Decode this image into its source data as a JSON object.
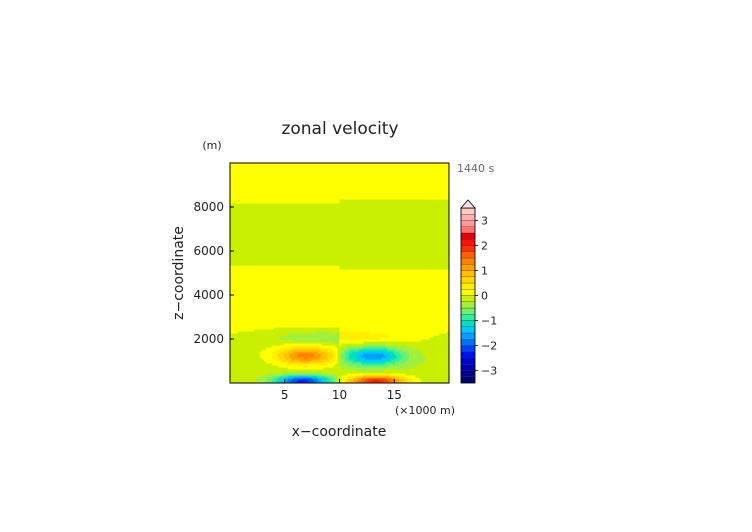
{
  "chart_data": {
    "type": "heatmap",
    "title": "zonal velocity",
    "xlabel": "x−coordinate",
    "ylabel": "z−coordinate",
    "x_unit": "(×1000 m)",
    "y_unit": "(m)",
    "time_label": "1440 s",
    "xlim": [
      0,
      20
    ],
    "ylim": [
      0,
      10000
    ],
    "x_ticks": [
      5,
      10,
      15
    ],
    "y_ticks": [
      2000,
      4000,
      6000,
      8000
    ],
    "grid": false,
    "legend": "right",
    "colorbar": {
      "levels": [
        -3.5,
        -3.25,
        -3,
        -2.75,
        -2.5,
        -2.25,
        -2,
        -1.75,
        -1.5,
        -1.25,
        -1,
        -0.75,
        -0.5,
        -0.25,
        0,
        0.25,
        0.5,
        0.75,
        1,
        1.25,
        1.5,
        1.75,
        2,
        2.25,
        2.5,
        2.75,
        3,
        3.25,
        3.5
      ],
      "tick_values": [
        3,
        2,
        1,
        0,
        -1,
        -2,
        -3
      ],
      "tick_labels": [
        "3",
        "2",
        "1",
        "0",
        "−1",
        "−2",
        "−3"
      ],
      "colors": [
        "#000070",
        "#000090",
        "#0000b0",
        "#0000d0",
        "#0010f0",
        "#0040ff",
        "#0070ff",
        "#00a0ff",
        "#00c8ff",
        "#00e0c0",
        "#30f0a0",
        "#70f070",
        "#a0f040",
        "#c8f000",
        "#ffff00",
        "#fff000",
        "#ffd800",
        "#ffc000",
        "#ffa000",
        "#ff8000",
        "#ff6000",
        "#ff3000",
        "#ff1010",
        "#e00000",
        "#ff7070",
        "#ff9898",
        "#ffb0b0",
        "#ffc8c8"
      ],
      "extend_max": true
    }
  }
}
